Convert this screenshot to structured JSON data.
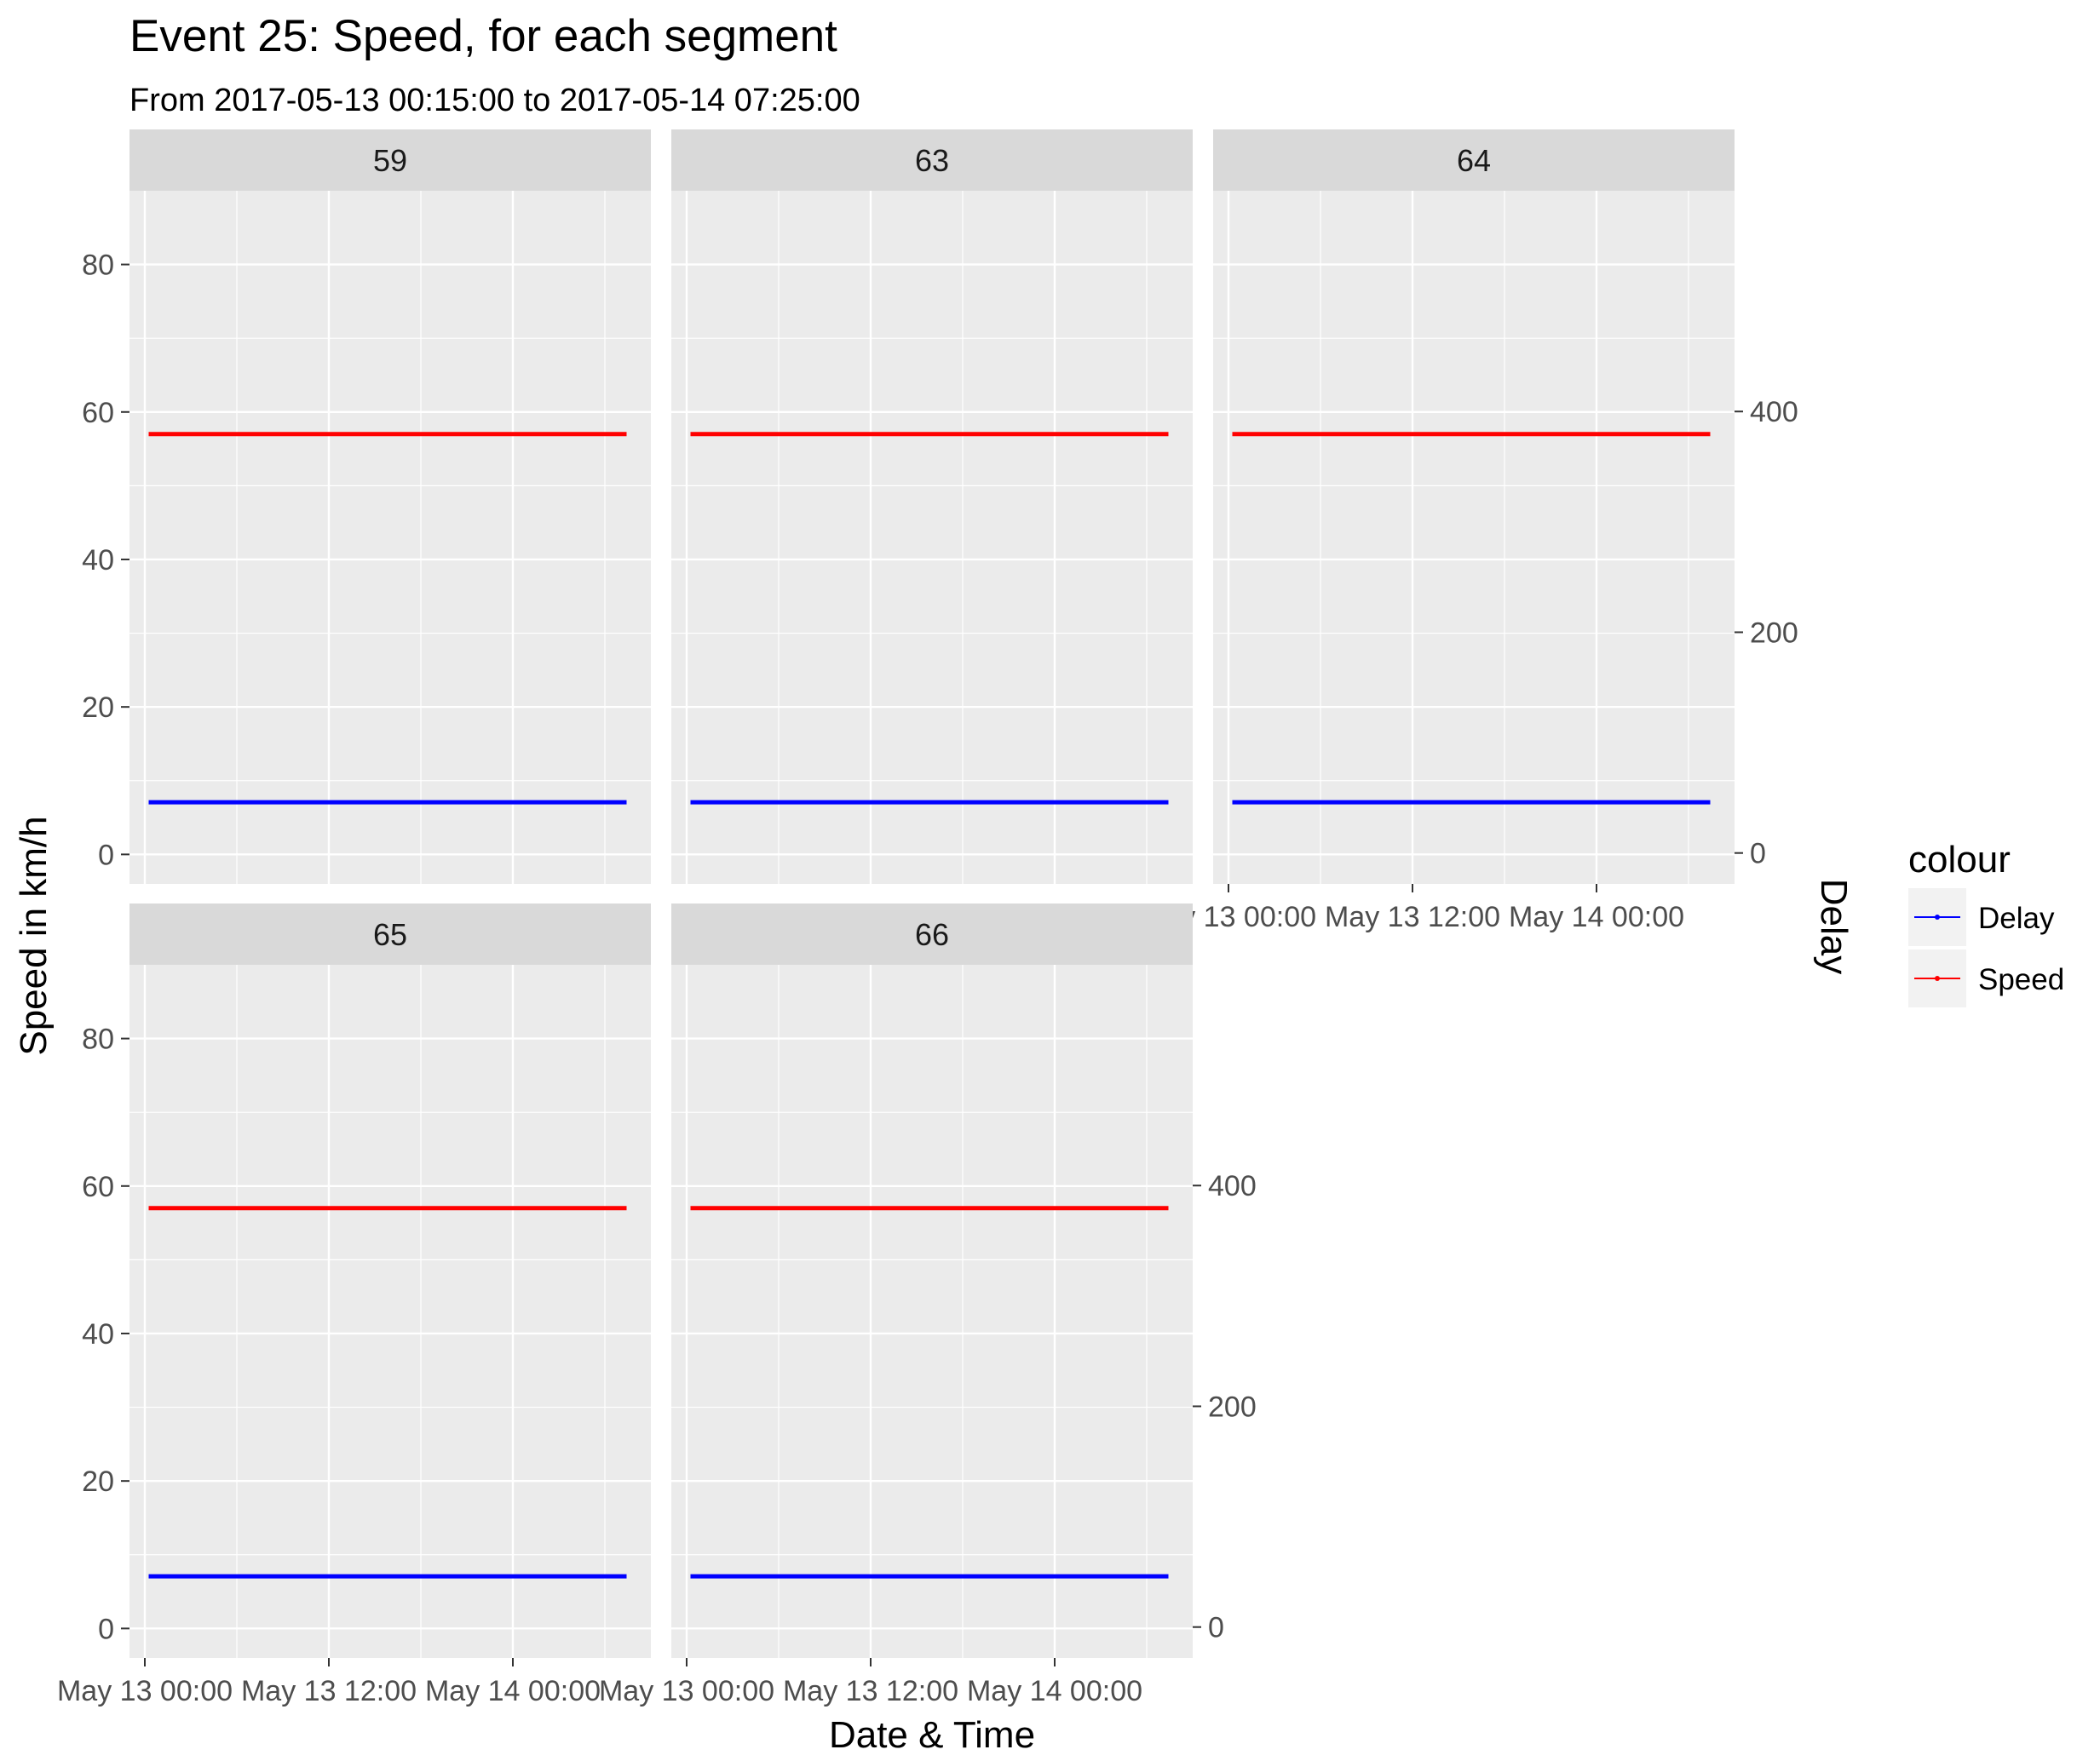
{
  "chart_data": {
    "type": "line",
    "title": "Event 25: Speed, for each segment",
    "subtitle": "From 2017-05-13 00:15:00 to 2017-05-14 07:25:00",
    "xlabel": "Date & Time",
    "ylabel": "Speed in km/h",
    "y2label": "Delay",
    "x_range": [
      "2017-05-12 23:00",
      "2017-05-14 09:00"
    ],
    "x_ticks": [
      {
        "value": "2017-05-13 00:00",
        "label": "May 13 00:00"
      },
      {
        "value": "2017-05-13 12:00",
        "label": "May 13 12:00"
      },
      {
        "value": "2017-05-14 00:00",
        "label": "May 14 00:00"
      }
    ],
    "ylim": [
      -4,
      90
    ],
    "y_ticks": [
      0,
      20,
      40,
      60,
      80
    ],
    "y2lim": [
      -28,
      600
    ],
    "y2_ticks": [
      0,
      200,
      400
    ],
    "grid": true,
    "legend": {
      "title": "colour",
      "placement": "right",
      "entries": [
        {
          "name": "Delay",
          "color": "#0000ff"
        },
        {
          "name": "Speed",
          "color": "#ff0000"
        }
      ]
    },
    "panels": [
      {
        "label": "59",
        "series": [
          {
            "name": "Speed",
            "color": "#ff0000",
            "axis": "left",
            "x": [
              "2017-05-13 00:15",
              "2017-05-14 07:25"
            ],
            "y": [
              57,
              57
            ]
          },
          {
            "name": "Delay",
            "color": "#0000ff",
            "axis": "right",
            "x": [
              "2017-05-13 00:15",
              "2017-05-14 07:25"
            ],
            "y": [
              46,
              46
            ]
          }
        ]
      },
      {
        "label": "63",
        "series": [
          {
            "name": "Speed",
            "color": "#ff0000",
            "axis": "left",
            "x": [
              "2017-05-13 00:15",
              "2017-05-14 07:25"
            ],
            "y": [
              57,
              57
            ]
          },
          {
            "name": "Delay",
            "color": "#0000ff",
            "axis": "right",
            "x": [
              "2017-05-13 00:15",
              "2017-05-14 07:25"
            ],
            "y": [
              46,
              46
            ]
          }
        ]
      },
      {
        "label": "64",
        "series": [
          {
            "name": "Speed",
            "color": "#ff0000",
            "axis": "left",
            "x": [
              "2017-05-13 00:15",
              "2017-05-14 07:25"
            ],
            "y": [
              57,
              57
            ]
          },
          {
            "name": "Delay",
            "color": "#0000ff",
            "axis": "right",
            "x": [
              "2017-05-13 00:15",
              "2017-05-14 07:25"
            ],
            "y": [
              46,
              46
            ]
          }
        ]
      },
      {
        "label": "65",
        "series": [
          {
            "name": "Speed",
            "color": "#ff0000",
            "axis": "left",
            "x": [
              "2017-05-13 00:15",
              "2017-05-14 07:25"
            ],
            "y": [
              57,
              57
            ]
          },
          {
            "name": "Delay",
            "color": "#0000ff",
            "axis": "right",
            "x": [
              "2017-05-13 00:15",
              "2017-05-14 07:25"
            ],
            "y": [
              46,
              46
            ]
          }
        ]
      },
      {
        "label": "66",
        "series": [
          {
            "name": "Speed",
            "color": "#ff0000",
            "axis": "left",
            "x": [
              "2017-05-13 00:15",
              "2017-05-14 07:25"
            ],
            "y": [
              57,
              57
            ]
          },
          {
            "name": "Delay",
            "color": "#0000ff",
            "axis": "right",
            "x": [
              "2017-05-13 00:15",
              "2017-05-14 07:25"
            ],
            "y": [
              46,
              46
            ]
          }
        ]
      }
    ]
  }
}
